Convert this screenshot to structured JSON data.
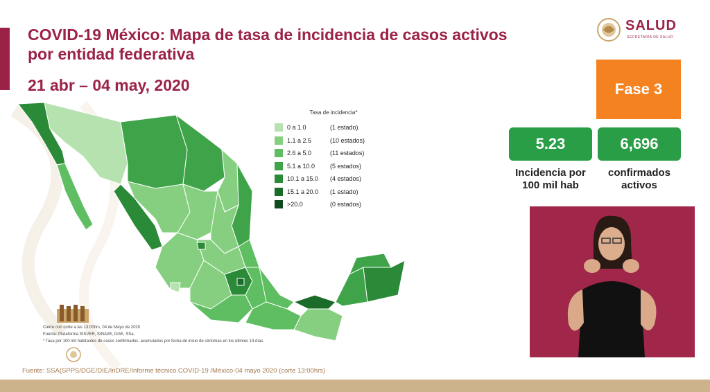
{
  "header": {
    "title": "COVID-19 México: Mapa de tasa de incidencia de casos activos por entidad federativa",
    "date_range": "21 abr – 04 may, 2020"
  },
  "logo": {
    "main": "SALUD",
    "sub": "SECRETARÍA DE SALUD"
  },
  "phase": {
    "label": "Fase 3"
  },
  "stats": {
    "incidence": {
      "value": "5.23",
      "label_line1": "Incidencia por",
      "label_line2": "100 mil hab"
    },
    "confirmed": {
      "value": "6,696",
      "label_line1": "confirmados",
      "label_line2": "activos"
    }
  },
  "legend": {
    "title": "Tasa de incidencia*",
    "items": [
      {
        "range": "0 a 1.0",
        "count": "(1 estado)",
        "color": "#b6e2b0"
      },
      {
        "range": "1.1 a 2.5",
        "count": "(10 estados)",
        "color": "#86cf80"
      },
      {
        "range": "2.6 a 5.0",
        "count": "(11 estados)",
        "color": "#5fbe62"
      },
      {
        "range": "5.1 a 10.0",
        "count": "(5 estados)",
        "color": "#3fa449"
      },
      {
        "range": "10.1 a 15.0",
        "count": "(4 estados)",
        "color": "#2a8a38"
      },
      {
        "range": "15.1 a 20.0",
        "count": "(1 estado)",
        "color": "#1b6c2a"
      },
      {
        "range": ">20.0",
        "count": "(0 estados)",
        "color": "#0f4a1c"
      }
    ]
  },
  "notes": {
    "line1": "Cierre con corte a las 13:00hrs, 04 de Mayo de 2020",
    "line2": "Fuente: Plataforma SISVER, SINAVE, DGE, SSa.",
    "line3": "* Tasa por 100 mil habitantes de casos confirmados, acumulados por fecha de inicio de síntomas en los últimos 14 días."
  },
  "footer": {
    "source": "Fuente: SSA(SPPS/DGE/DIE/InDRE/Informe técnico.COVID-19 /México-04 mayo 2020 (corte 13:00hrs)"
  },
  "colors": {
    "brand": "#9b2247",
    "phase": "#f58220",
    "stat_box": "#2a9d47",
    "footer_bar": "#ccb38c"
  }
}
